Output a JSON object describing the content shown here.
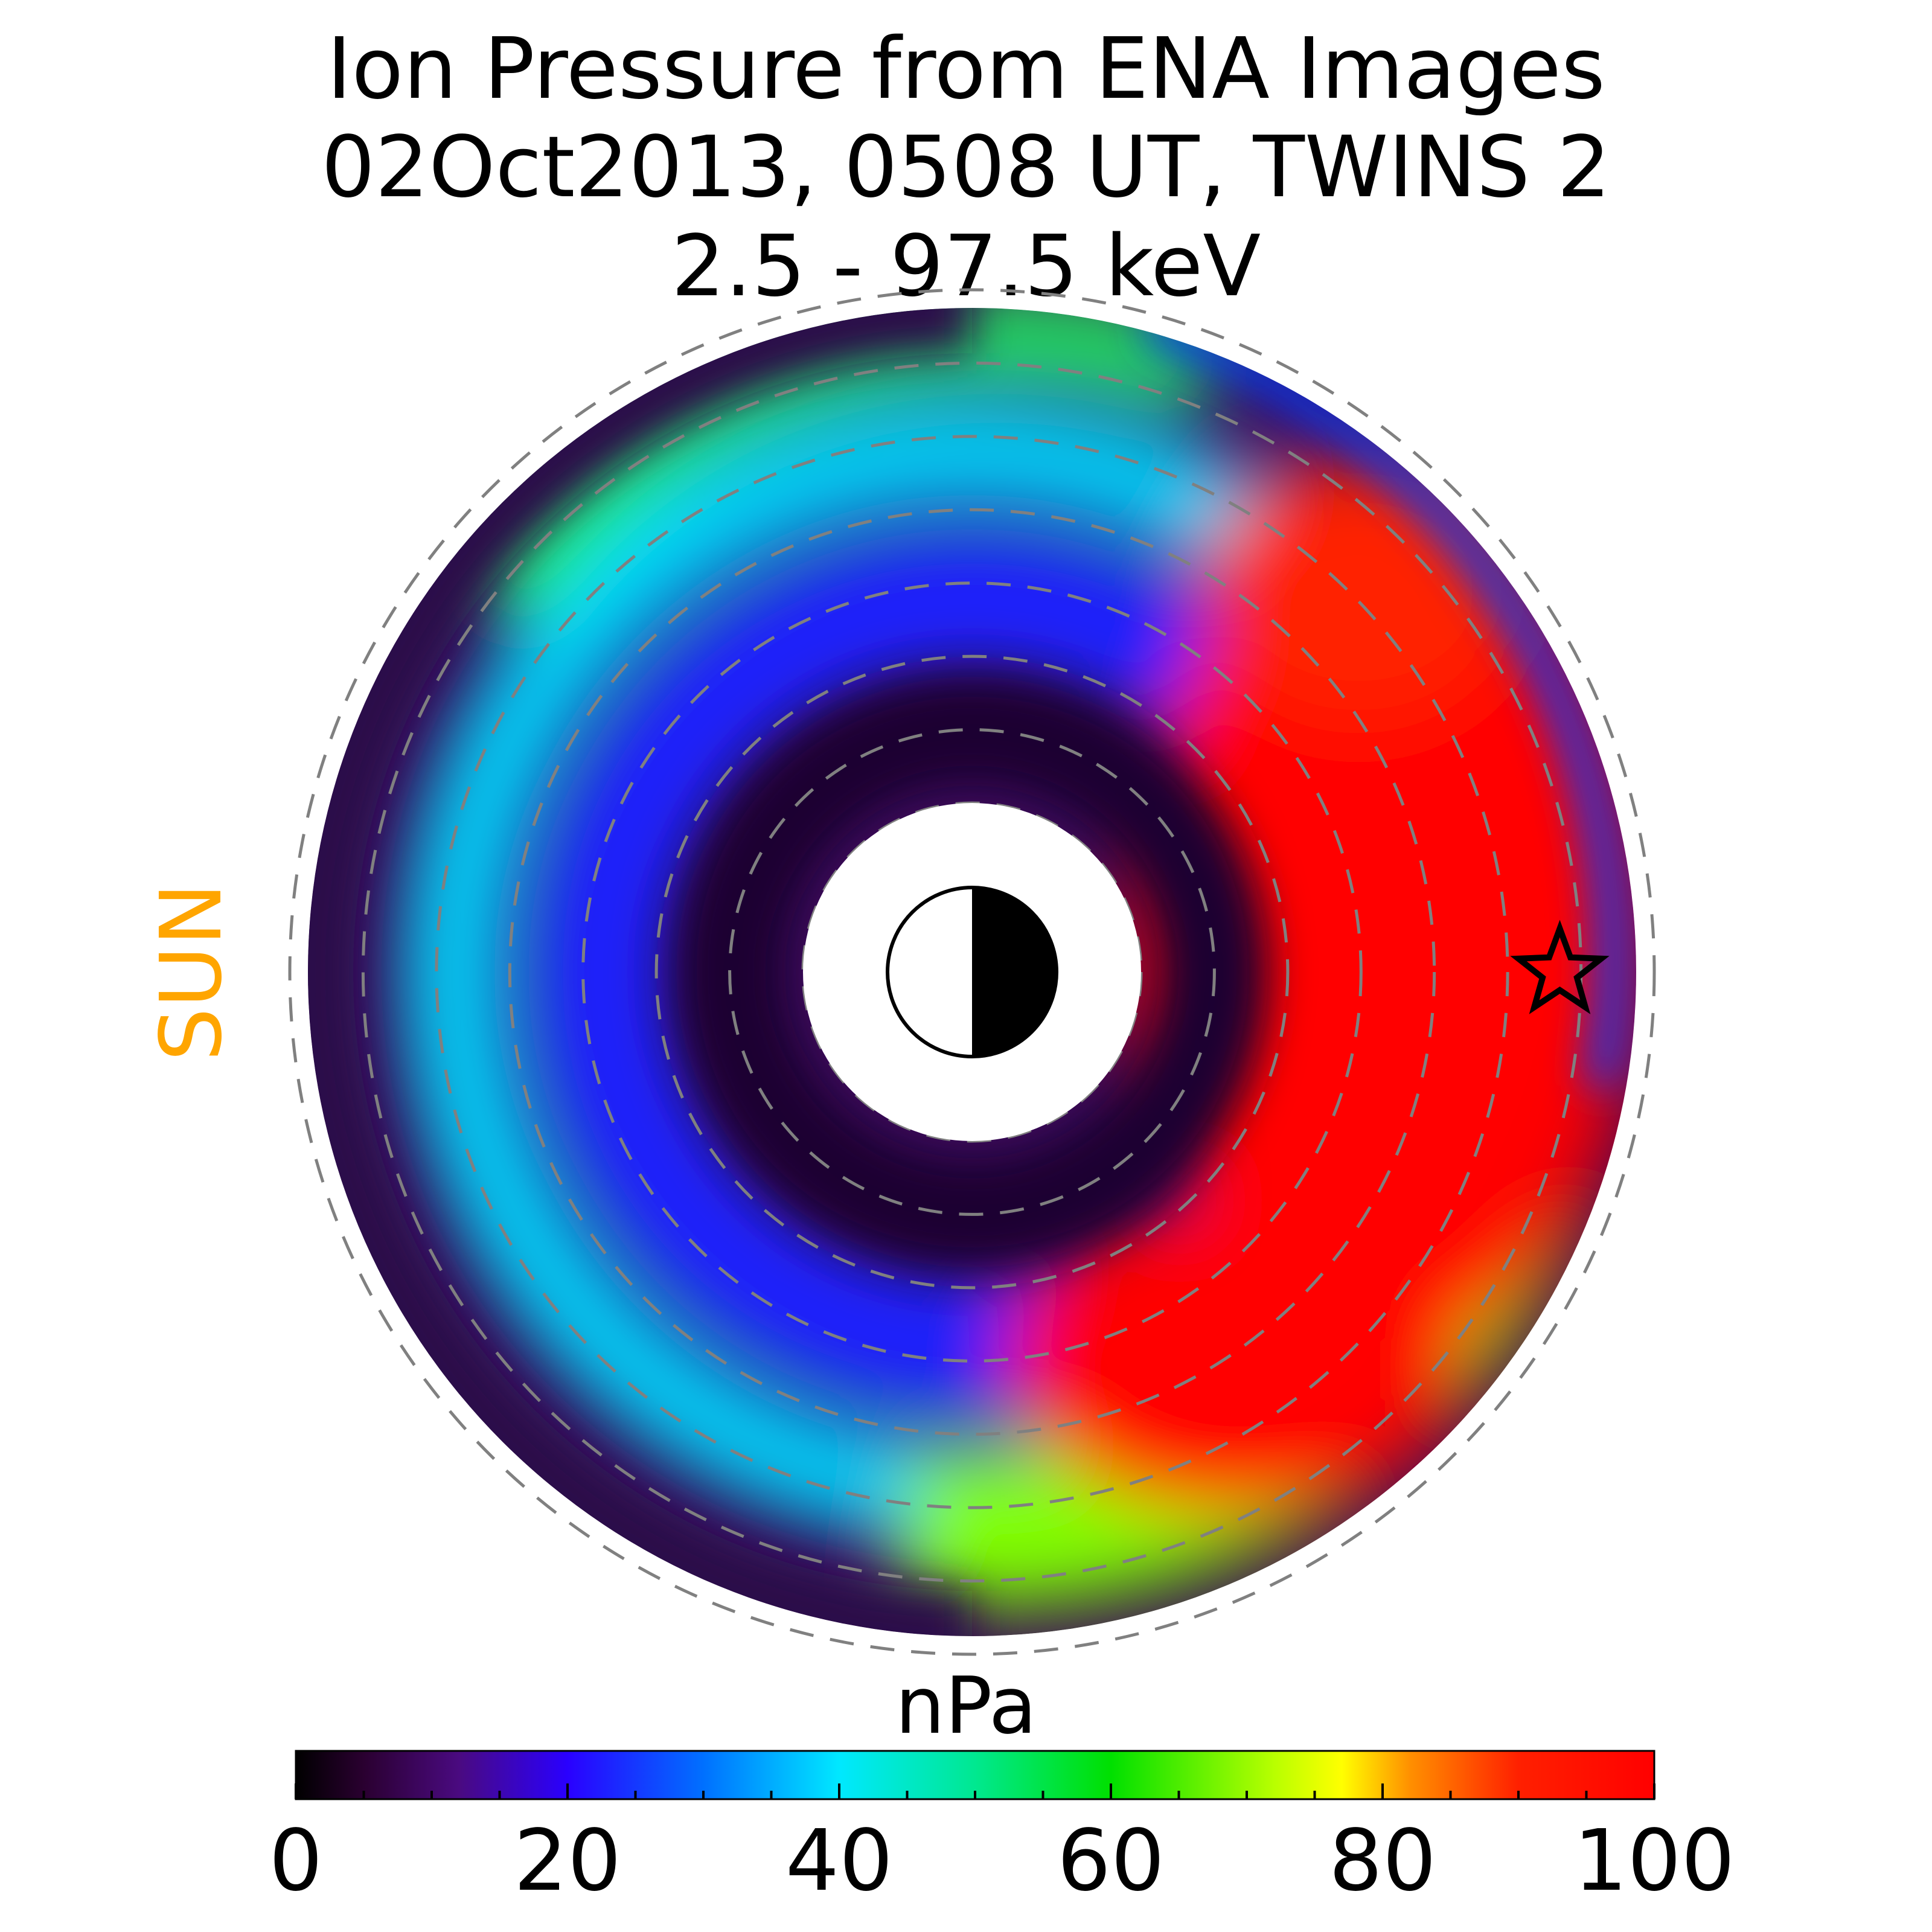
{
  "title": {
    "line1": "Ion Pressure from  ENA Images",
    "line2": "02Oct2013, 0508 UT,  TWINS 2",
    "line3": "2.5 - 97.5 keV"
  },
  "sun_label": "SUN",
  "colors": {
    "sun_label": "#ffa500",
    "grid_ring": "#808080",
    "background": "#ffffff"
  },
  "chart_data": {
    "type": "heatmap",
    "projection": "polar equatorial plane, Sun to the left",
    "colorbar": {
      "label": "nPa",
      "range": [
        0,
        100
      ],
      "ticks": [
        0,
        20,
        40,
        60,
        80,
        100
      ],
      "colormap": "jet-like (black-purple-blue-cyan-green-yellow-red)"
    },
    "grid": true,
    "dashed_rings": 8,
    "regions": [
      {
        "location": "dawn/dusk side right (anti-sunward half)",
        "pressure_nPa": 100
      },
      {
        "location": "inner ring near planet",
        "pressure_nPa": 5
      },
      {
        "location": "middle band left side",
        "pressure_nPa": 25
      },
      {
        "location": "outer band left side",
        "pressure_nPa": 45
      },
      {
        "location": "outermost left edge",
        "pressure_nPa": 8
      }
    ],
    "markers": [
      {
        "type": "star",
        "description": "spacecraft position",
        "angle_deg": 0,
        "radius_fraction": 0.885
      }
    ],
    "planet_symbol": "half-shaded circle, day side left"
  }
}
